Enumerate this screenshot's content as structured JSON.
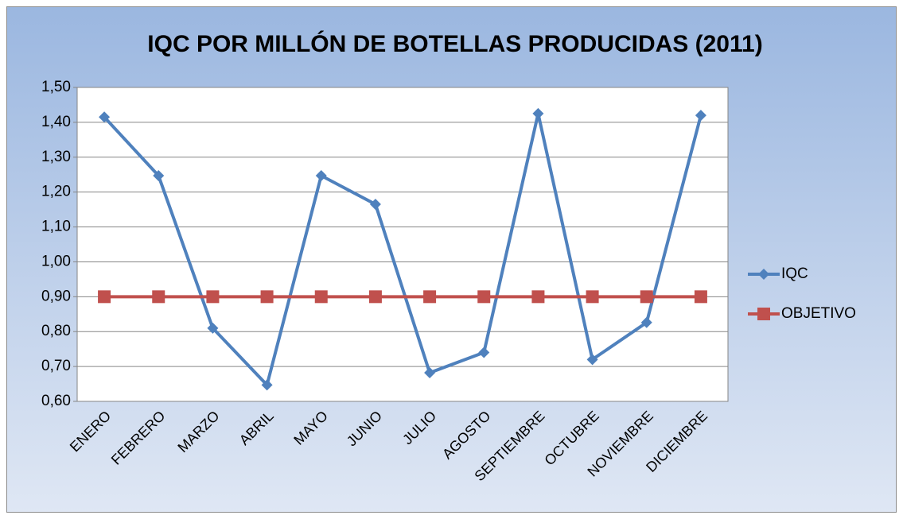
{
  "chart_data": {
    "type": "line",
    "title": "IQC  POR MILLÓN DE BOTELLAS PRODUCIDAS (2011)",
    "categories": [
      "ENERO",
      "FEBRERO",
      "MARZO",
      "ABRIL",
      "MAYO",
      "JUNIO",
      "JULIO",
      "AGOSTO",
      "SEPTIEMBRE",
      "OCTUBRE",
      "NOVIEMBRE",
      "DICIEMBRE"
    ],
    "series": [
      {
        "name": "IQC",
        "color": "#4f81bd",
        "marker": "diamond",
        "values": [
          1.415,
          1.247,
          0.81,
          0.647,
          1.247,
          1.165,
          0.682,
          0.74,
          1.425,
          0.72,
          0.826,
          1.42
        ]
      },
      {
        "name": "OBJETIVO",
        "color": "#c0504d",
        "marker": "square",
        "values": [
          0.9,
          0.9,
          0.9,
          0.9,
          0.9,
          0.9,
          0.9,
          0.9,
          0.9,
          0.9,
          0.9,
          0.9
        ]
      }
    ],
    "ylim": [
      0.6,
      1.5
    ],
    "yticks": [
      {
        "value": 0.6,
        "label": "0,60"
      },
      {
        "value": 0.7,
        "label": "0,70"
      },
      {
        "value": 0.8,
        "label": "0,80"
      },
      {
        "value": 0.9,
        "label": "0,90"
      },
      {
        "value": 1.0,
        "label": "1,00"
      },
      {
        "value": 1.1,
        "label": "1,10"
      },
      {
        "value": 1.2,
        "label": "1,20"
      },
      {
        "value": 1.3,
        "label": "1,30"
      },
      {
        "value": 1.4,
        "label": "1,40"
      },
      {
        "value": 1.5,
        "label": "1,50"
      }
    ],
    "grid": true,
    "legend": "right"
  }
}
